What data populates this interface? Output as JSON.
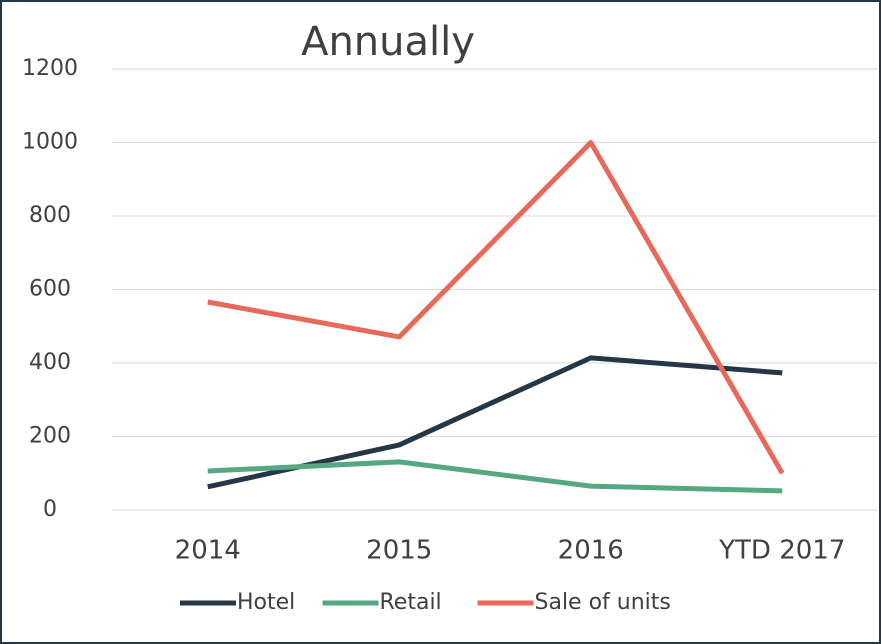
{
  "chart_data": {
    "type": "line",
    "title": "Annually",
    "categories": [
      "2014",
      "2015",
      "2016",
      "YTD 2017"
    ],
    "series": [
      {
        "name": "Hotel",
        "color": "#253746",
        "values": [
          63,
          177,
          414,
          373
        ]
      },
      {
        "name": "Retail",
        "color": "#56a882",
        "values": [
          106,
          131,
          65,
          52
        ]
      },
      {
        "name": "Sale of units",
        "color": "#e8685a",
        "values": [
          566,
          471,
          1000,
          100
        ]
      }
    ],
    "ylim": [
      0,
      1200
    ],
    "yticks": [
      0,
      200,
      400,
      600,
      800,
      1000,
      1200
    ],
    "grid": true,
    "legend": "bottom"
  }
}
